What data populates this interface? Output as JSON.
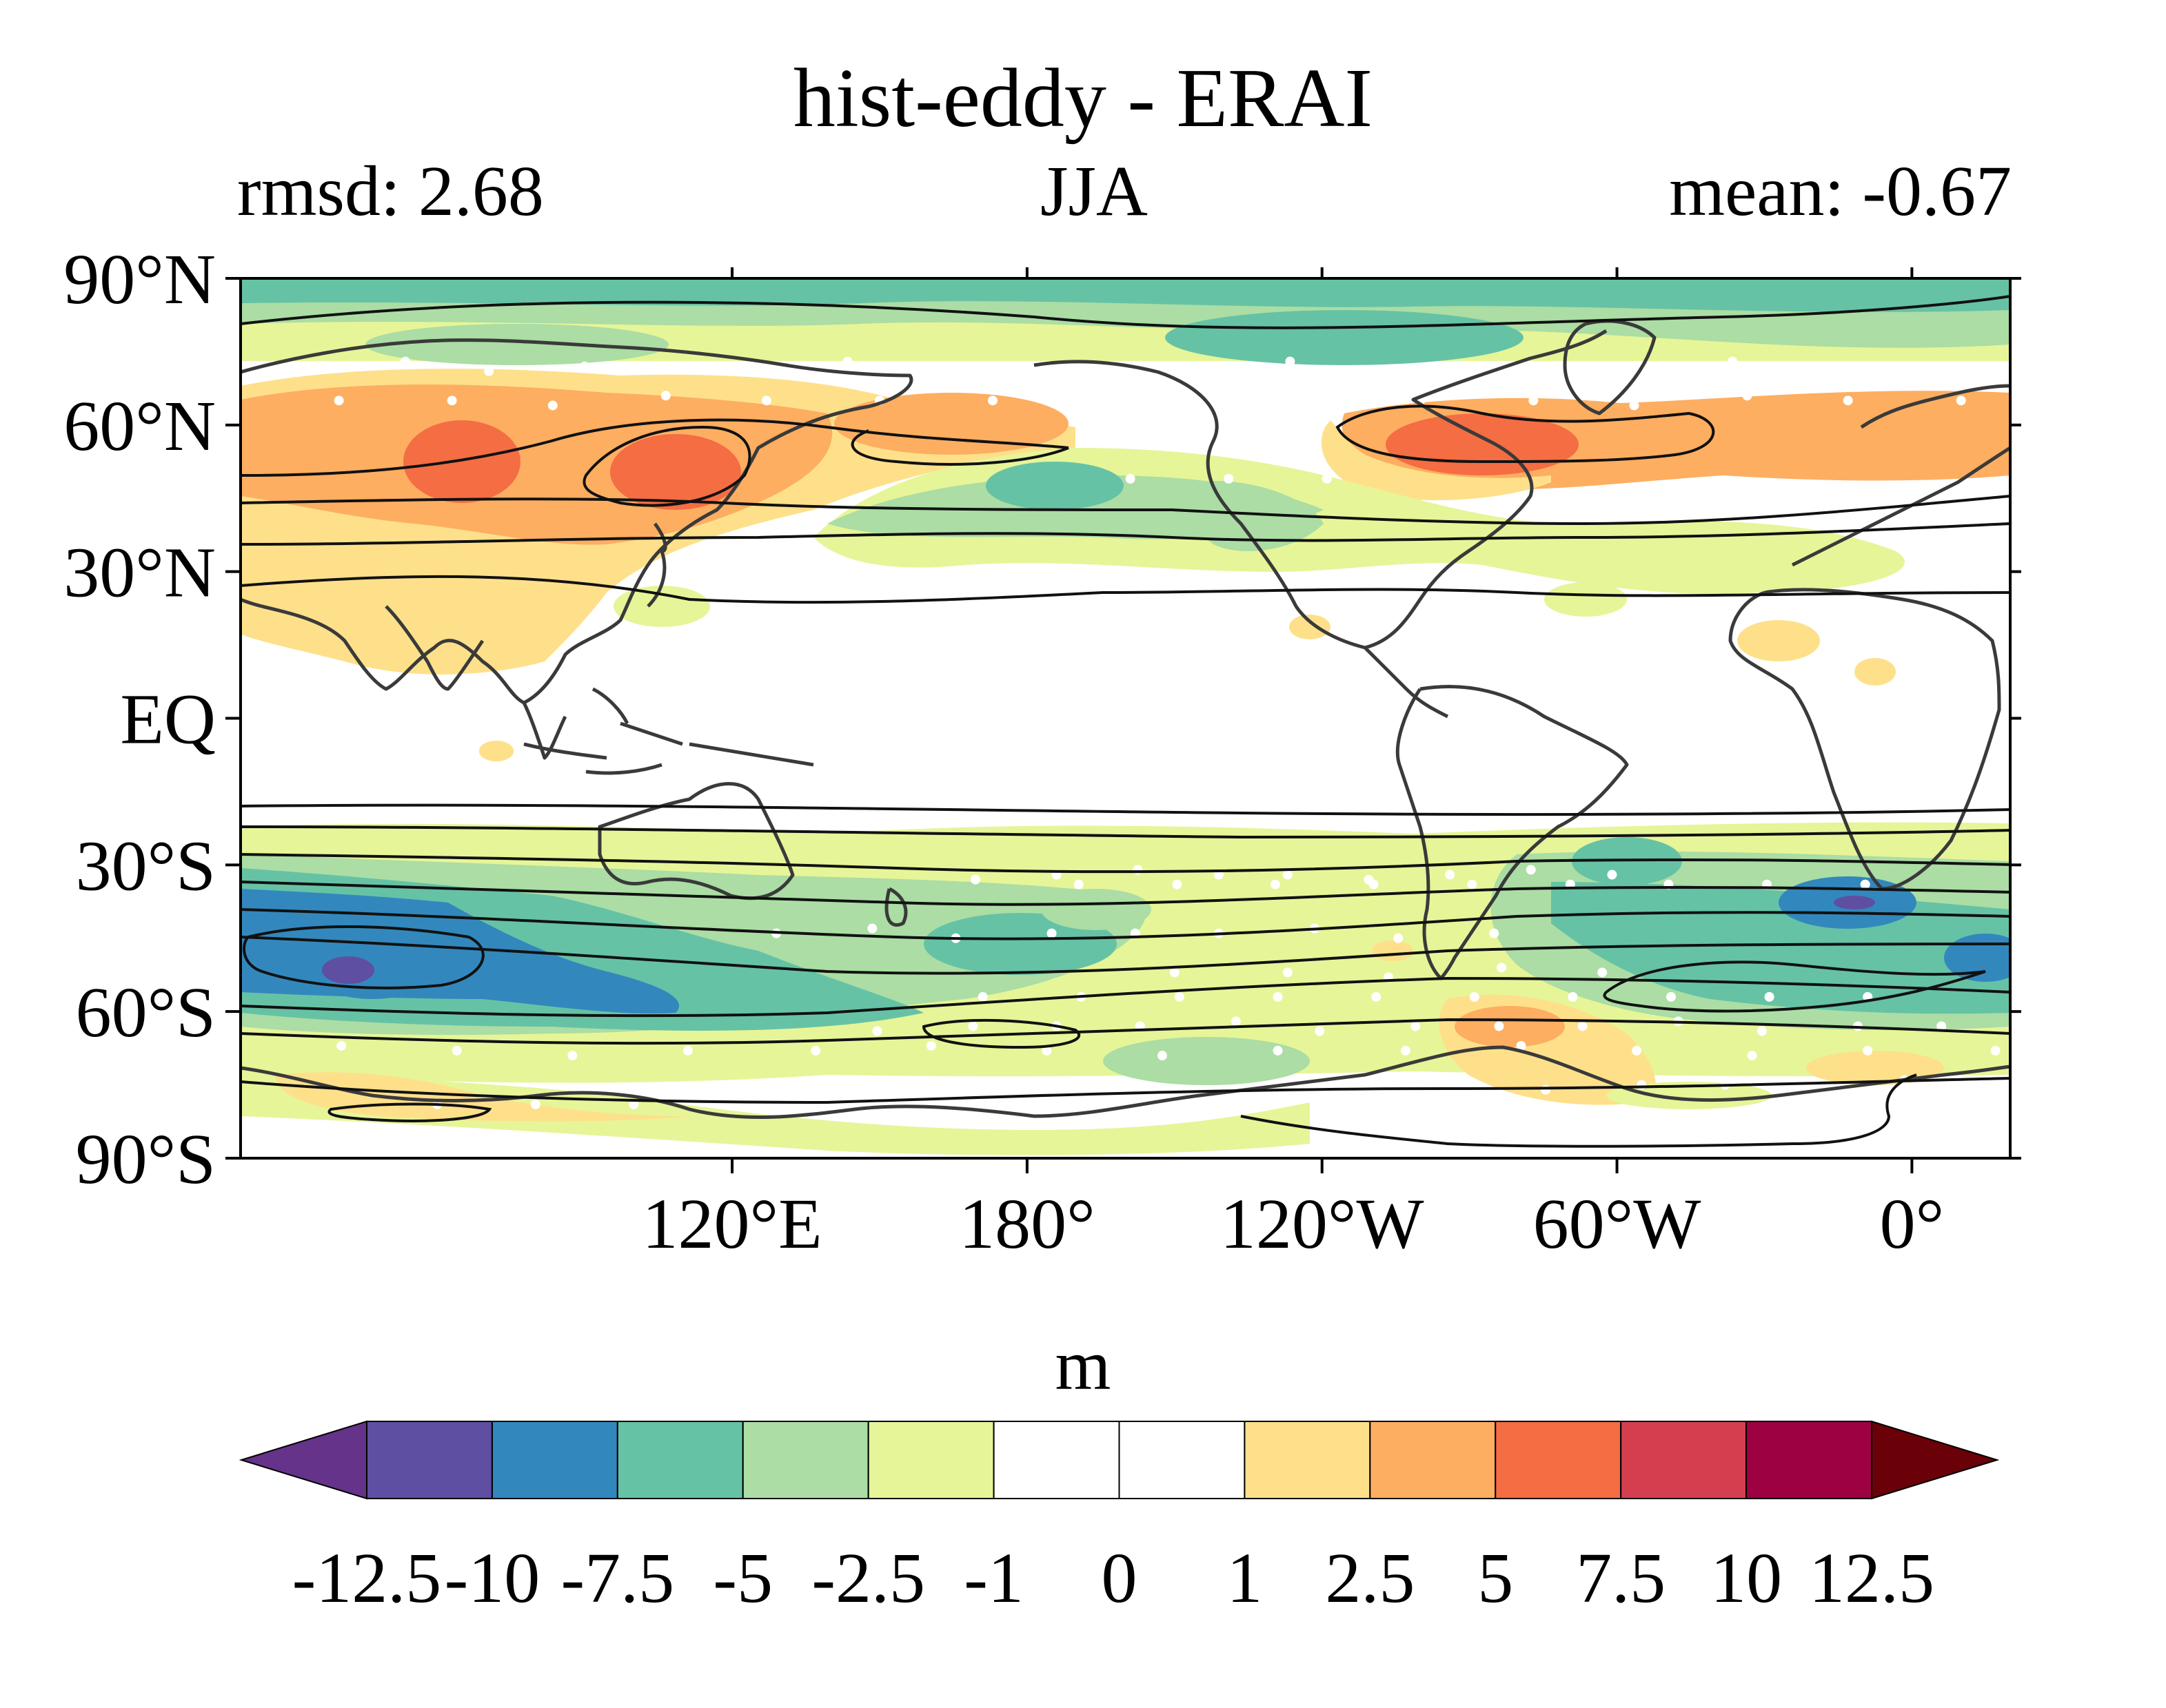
{
  "figure": {
    "title": "hist-eddy - ERAI",
    "left_label": "rmsd: 2.68",
    "center_label": "JJA",
    "right_label": "mean: -0.67"
  },
  "map": {
    "projection": "equirectangular",
    "lon_range": [
      20,
      380
    ],
    "lat_range": [
      -90,
      90
    ],
    "lat_ticks": [
      {
        "value": 90,
        "label": "90°N"
      },
      {
        "value": 60,
        "label": "60°N"
      },
      {
        "value": 30,
        "label": "30°N"
      },
      {
        "value": 0,
        "label": "EQ"
      },
      {
        "value": -30,
        "label": "30°S"
      },
      {
        "value": -60,
        "label": "60°S"
      },
      {
        "value": -90,
        "label": "90°S"
      }
    ],
    "lon_ticks": [
      {
        "value": 120,
        "label": "120°E"
      },
      {
        "value": 180,
        "label": "180°"
      },
      {
        "value": 240,
        "label": "120°W"
      },
      {
        "value": 300,
        "label": "60°W"
      },
      {
        "value": 360,
        "label": "0°"
      }
    ],
    "stippling": "white-dots",
    "colors": {
      "coastline": "#3a3a3a",
      "contour": "#111111",
      "stipple": "#ffffff"
    }
  },
  "colorbar": {
    "units": "m",
    "levels": [
      "-12.5",
      "-10",
      "-7.5",
      "-5",
      "-2.5",
      "-1",
      "0",
      "1",
      "2.5",
      "5",
      "7.5",
      "10",
      "12.5"
    ],
    "colors": [
      "#5e4fa2",
      "#3288bd",
      "#66c2a5",
      "#abdda4",
      "#e6f598",
      "#ffffff",
      "#ffffff",
      "#fee08b",
      "#fdae61",
      "#f46d43",
      "#d53e4f",
      "#9e0142"
    ],
    "extend_min_color": "#65338a",
    "extend_max_color": "#6a0008"
  }
}
